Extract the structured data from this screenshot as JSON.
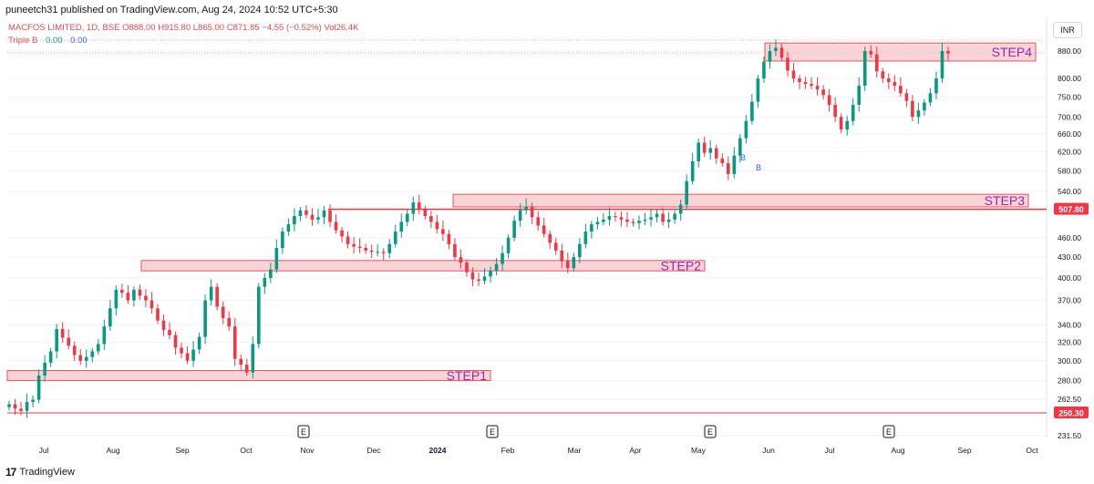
{
  "header": {
    "published": "puneetch31 published on TradingView.com, Aug 24, 2024 10:52 UTC+5:30",
    "symbol_line": "MACFOS LIMITED, 1D, BSE  O888.00  H915.80  L865.00  C871.85  −4.55 (−0.52%)  Vol26.4K",
    "indicator_name": "Triple B",
    "indicator_v1": "0.00",
    "indicator_v2": "0.00",
    "currency": "INR"
  },
  "colors": {
    "up": "#089981",
    "down": "#f23645",
    "zone_fill": "#f7c5c8",
    "zone_stroke": "#e8545a",
    "label": "#9c27b0",
    "level": "#f23645"
  },
  "chart_data": {
    "type": "candlestick",
    "y_scale": "log",
    "y_ticks": [
      "880.00",
      "800.00",
      "750.00",
      "700.00",
      "660.00",
      "620.00",
      "580.00",
      "540.00",
      "460.00",
      "430.00",
      "400.00",
      "370.00",
      "340.00",
      "320.00",
      "300.00",
      "280.00",
      "262.50",
      "231.50"
    ],
    "x_labels": [
      "Jul",
      "Aug",
      "Sep",
      "Oct",
      "Nov",
      "Dec",
      "2024",
      "Feb",
      "Mar",
      "Apr",
      "May",
      "Jun",
      "Jul",
      "Aug",
      "Sep",
      "Oct"
    ],
    "levels": [
      {
        "price": 507.8,
        "label": "507.80"
      },
      {
        "price": 250.3,
        "label": "250.30"
      }
    ],
    "zones": [
      {
        "label": "STEP1",
        "low": 280,
        "high": 290,
        "from_month": "Jun",
        "to_month": "Jan"
      },
      {
        "label": "STEP2",
        "low": 410,
        "high": 425,
        "from_month": "Sep",
        "to_month": "Apr"
      },
      {
        "label": "STEP3",
        "low": 512,
        "high": 535,
        "from_month": "Jan",
        "to_month": "Oct"
      },
      {
        "label": "STEP4",
        "low": 850,
        "high": 905,
        "from_month": "Jun",
        "to_month": "Oct"
      }
    ],
    "event_markers": [
      "E",
      "E",
      "E",
      "E"
    ],
    "signal_markers": [
      "B",
      "B"
    ],
    "path_closes": [
      258,
      254,
      252,
      260,
      262,
      285,
      298,
      310,
      335,
      325,
      316,
      306,
      300,
      304,
      310,
      318,
      338,
      360,
      384,
      380,
      370,
      384,
      376,
      370,
      360,
      345,
      334,
      328,
      314,
      308,
      300,
      312,
      326,
      370,
      388,
      362,
      348,
      338,
      302,
      296,
      288,
      318,
      388,
      400,
      412,
      444,
      470,
      482,
      496,
      506,
      498,
      490,
      494,
      506,
      486,
      472,
      462,
      450,
      446,
      444,
      440,
      438,
      438,
      436,
      450,
      470,
      486,
      500,
      520,
      508,
      496,
      486,
      474,
      466,
      450,
      430,
      422,
      408,
      398,
      396,
      402,
      410,
      420,
      436,
      460,
      488,
      506,
      512,
      494,
      480,
      466,
      452,
      440,
      424,
      414,
      430,
      450,
      470,
      482,
      486,
      490,
      496,
      494,
      490,
      486,
      484,
      488,
      490,
      494,
      500,
      486,
      490,
      500,
      516,
      560,
      600,
      640,
      618,
      628,
      606,
      596,
      574,
      612,
      650,
      690,
      738,
      800,
      848,
      880,
      890,
      860,
      822,
      800,
      790,
      785,
      780,
      770,
      755,
      730,
      700,
      670,
      690,
      730,
      780,
      880,
      870,
      820,
      800,
      790,
      780,
      760,
      740,
      700,
      716,
      736,
      760,
      800,
      880,
      872
    ],
    "ohlc_last": {
      "open": 888.0,
      "high": 915.8,
      "low": 865.0,
      "close": 871.85,
      "change": -4.55,
      "change_pct": -0.52,
      "volume": "26.4K"
    }
  },
  "footer": {
    "logo": "17",
    "brand": "TradingView"
  }
}
